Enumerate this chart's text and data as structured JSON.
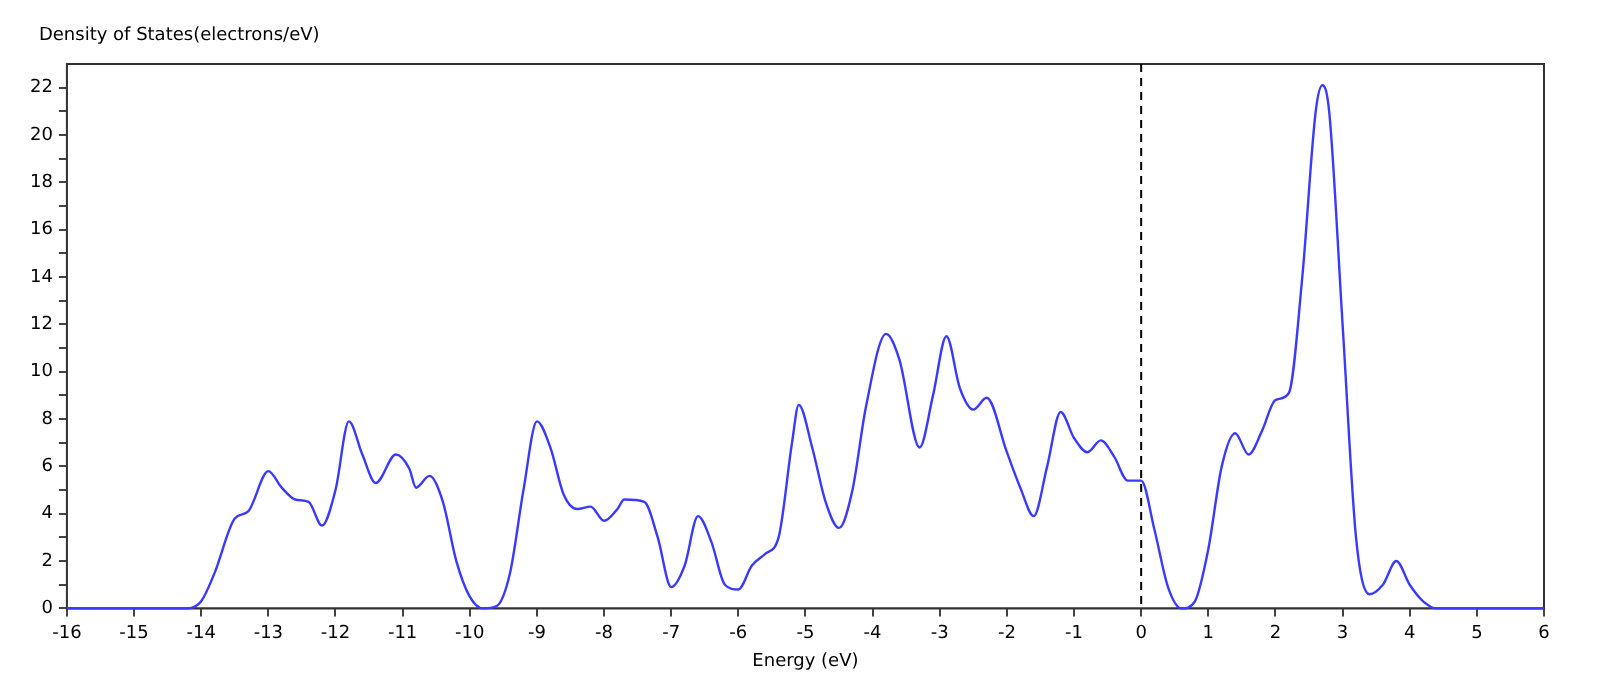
{
  "chart_data": {
    "type": "line",
    "ylabel": "Density of States(electrons/eV)",
    "xlabel": "Energy (eV)",
    "xlim": [
      -16,
      6
    ],
    "xticks": [
      -16,
      -15,
      -14,
      -13,
      -12,
      -11,
      -10,
      -9,
      -8,
      -7,
      -6,
      -5,
      -4,
      -3,
      -2,
      -1,
      0,
      1,
      2,
      3,
      4,
      5,
      6
    ],
    "ylim": [
      0,
      23
    ],
    "yticks": [
      0,
      {
        "value": 1,
        "label": null
      },
      2,
      {
        "value": 3,
        "label": null
      },
      4,
      {
        "value": 5,
        "label": null
      },
      6,
      {
        "value": 7,
        "label": null
      },
      8,
      {
        "value": 9,
        "label": null
      },
      10,
      {
        "value": 11,
        "label": null
      },
      12,
      {
        "value": 13,
        "label": null
      },
      14,
      {
        "value": 15,
        "label": null
      },
      16,
      {
        "value": 17,
        "label": null
      },
      18,
      {
        "value": 19,
        "label": null
      },
      20,
      {
        "value": 21,
        "label": null
      },
      22
    ],
    "grid": false,
    "legend": false,
    "marker": "none",
    "line_style": "solid",
    "ref_lines": [
      {
        "axis": "x",
        "value": 0,
        "color": "#000000",
        "line_style": "dashed"
      }
    ],
    "series": [
      {
        "color": "#3a3aff",
        "x": [
          -16,
          -14.2,
          -14,
          -13.8,
          -13.5,
          -13.3,
          -13,
          -12.8,
          -12.6,
          -12.4,
          -12.2,
          -12,
          -11.8,
          -11.6,
          -11.4,
          -11.1,
          -10.9,
          -10.8,
          -10.6,
          -10.4,
          -10.2,
          -10,
          -9.8,
          -9.6,
          -9.4,
          -9.2,
          -9,
          -8.8,
          -8.6,
          -8.4,
          -8.2,
          -8,
          -7.8,
          -7.7,
          -7.4,
          -7.2,
          -7,
          -6.8,
          -6.6,
          -6.4,
          -6.2,
          -6,
          -5.8,
          -5.6,
          -5.4,
          -5.2,
          -5.1,
          -4.9,
          -4.7,
          -4.5,
          -4.3,
          -4.1,
          -3.8,
          -3.6,
          -3.3,
          -3.1,
          -2.9,
          -2.7,
          -2.5,
          -2.3,
          -2,
          -1.8,
          -1.6,
          -1.4,
          -1.2,
          -1,
          -0.8,
          -0.6,
          -0.4,
          -0.2,
          0,
          0.2,
          0.4,
          0.6,
          0.8,
          1,
          1.2,
          1.4,
          1.6,
          1.8,
          2,
          2.2,
          2.4,
          2.6,
          2.7,
          2.8,
          3,
          3.2,
          3.4,
          3.6,
          3.8,
          4,
          4.2,
          4.4,
          6
        ],
        "values": [
          0,
          0,
          0.3,
          1.5,
          3.8,
          4.1,
          5.8,
          5.1,
          4.6,
          4.5,
          3.5,
          5,
          7.9,
          6.5,
          5.3,
          6.5,
          5.9,
          5.1,
          5.6,
          4.5,
          2,
          0.5,
          0,
          0.1,
          1.5,
          5,
          7.9,
          6.8,
          4.8,
          4.2,
          4.3,
          3.7,
          4.2,
          4.6,
          4.5,
          3,
          0.9,
          1.8,
          3.9,
          2.8,
          1,
          0.8,
          1.8,
          2.3,
          3,
          7,
          8.6,
          6.8,
          4.5,
          3.4,
          5,
          8.5,
          11.6,
          10.5,
          6.8,
          9,
          11.5,
          9.3,
          8.4,
          8.9,
          6.6,
          5.1,
          3.9,
          6,
          8.3,
          7.2,
          6.6,
          7.1,
          6.4,
          5.4,
          5.4,
          3.3,
          0.9,
          0,
          0.3,
          2.5,
          6,
          7.4,
          6.5,
          7.5,
          8.8,
          9.1,
          14,
          21,
          22.1,
          21,
          12,
          3,
          0.6,
          1,
          2,
          1,
          0.3,
          0,
          0
        ]
      }
    ]
  }
}
